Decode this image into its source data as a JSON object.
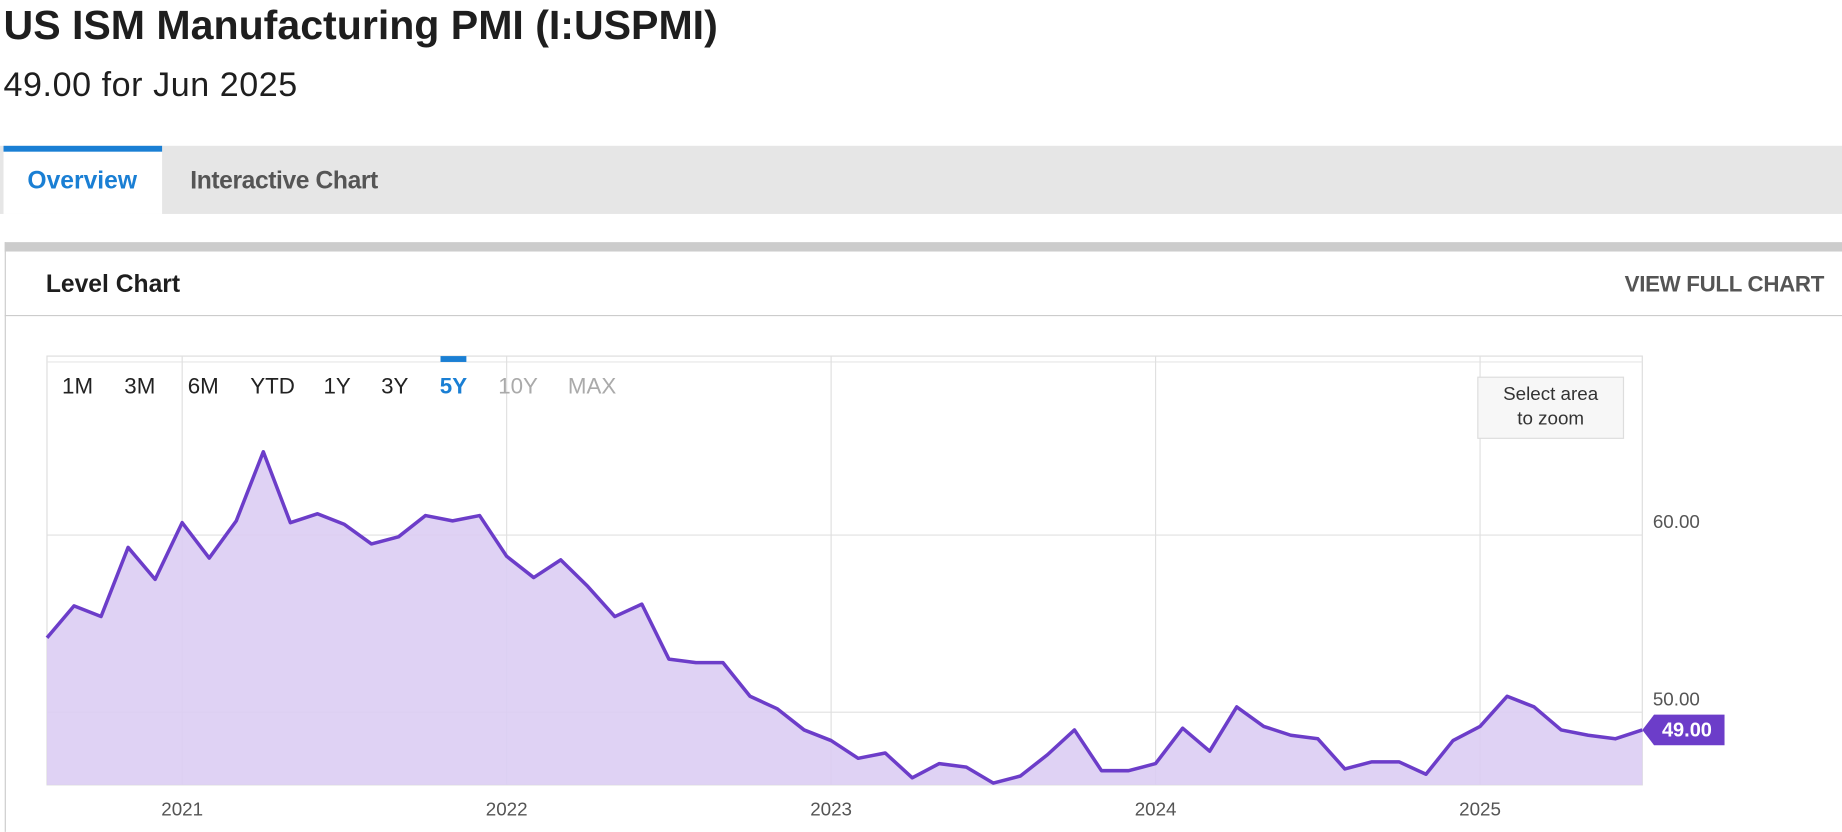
{
  "header": {
    "title": "US ISM Manufacturing PMI (I:USPMI)",
    "subtitle": "49.00 for Jun 2025"
  },
  "tabs": [
    "Overview",
    "Interactive Chart"
  ],
  "panel": {
    "title": "Level Chart",
    "link": "VIEW FULL CHART"
  },
  "range_buttons": [
    "1M",
    "3M",
    "6M",
    "YTD",
    "1Y",
    "3Y",
    "5Y",
    "10Y",
    "MAX"
  ],
  "zoom_hint": [
    "Select area",
    "to zoom"
  ],
  "chart_data": {
    "type": "area",
    "color": "#6c3dc9",
    "fill": "#dccdf3",
    "grid": true,
    "categories": [
      null,
      null,
      null,
      null,
      null,
      "2021",
      null,
      null,
      null,
      null,
      null,
      null,
      null,
      null,
      null,
      null,
      null,
      "2022",
      null,
      null,
      null,
      null,
      null,
      null,
      null,
      null,
      null,
      null,
      null,
      "2023",
      null,
      null,
      null,
      null,
      null,
      null,
      null,
      null,
      null,
      null,
      null,
      "2024",
      null,
      null,
      null,
      null,
      null,
      null,
      null,
      null,
      null,
      null,
      null,
      "2025",
      null,
      null,
      null,
      null,
      null,
      null
    ],
    "values": [
      54.2,
      56.0,
      55.4,
      59.3,
      57.5,
      60.7,
      58.7,
      60.8,
      64.7,
      60.7,
      61.2,
      60.6,
      59.5,
      59.9,
      61.1,
      60.8,
      61.1,
      58.8,
      57.6,
      58.6,
      57.1,
      55.4,
      56.1,
      53.0,
      52.8,
      52.8,
      50.9,
      50.2,
      49.0,
      48.4,
      47.4,
      47.7,
      46.3,
      47.1,
      46.9,
      46.0,
      46.4,
      47.6,
      49.0,
      46.7,
      46.7,
      47.1,
      49.1,
      47.8,
      50.3,
      49.2,
      48.7,
      48.5,
      46.8,
      47.2,
      47.2,
      46.5,
      48.4,
      49.2,
      50.9,
      50.3,
      49.0,
      48.7,
      48.5,
      49.0
    ],
    "value_labels": [
      null,
      null,
      null,
      null,
      null,
      null,
      null,
      null,
      null,
      null,
      null,
      null,
      null,
      null,
      null,
      null,
      null,
      null,
      null,
      null,
      null,
      null,
      null,
      null,
      null,
      null,
      null,
      null,
      null,
      null,
      null,
      null,
      null,
      null,
      null,
      null,
      null,
      null,
      null,
      null,
      null,
      null,
      null,
      null,
      null,
      null,
      null,
      null,
      null,
      null,
      null,
      null,
      null,
      null,
      null,
      null,
      null,
      null,
      null,
      "49.00"
    ],
    "ylim": [
      45.9,
      70.1
    ],
    "yticks": [
      {
        "value": 50,
        "label": "50.00"
      },
      {
        "value": 60,
        "label": "60.00"
      }
    ]
  }
}
